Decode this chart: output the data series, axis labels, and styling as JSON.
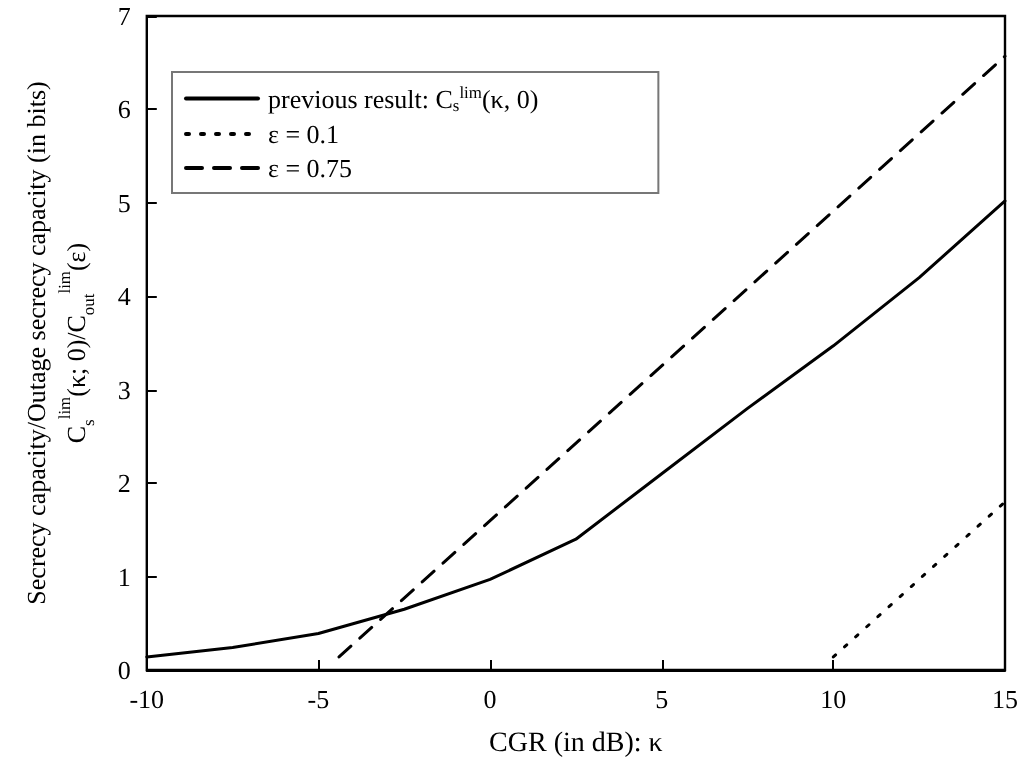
{
  "chart_data": {
    "type": "line",
    "xlabel": "CGR (in dB): κ",
    "ylabel": "Secrecy capacity/Outage secrecy capacity (in bits)\nC$_{s}$$^{lim}$(κ; 0)/C$_{out}$$^{lim}$(ε)",
    "xlim": [
      -10,
      15
    ],
    "xticks": [
      -10,
      -5,
      0,
      5,
      10,
      15
    ],
    "ylim": [
      0,
      7
    ],
    "yticks": [
      0,
      1,
      2,
      3,
      4,
      5,
      6,
      7
    ],
    "grid": false,
    "legend": "top left",
    "marker": "none",
    "series": [
      {
        "name": "previous result: C$_{s}$$^{lim}$(κ, 0)",
        "color": "#000000",
        "line_style": "solid",
        "x": [
          -10,
          -7.5,
          -5,
          -2.5,
          0,
          2.5,
          5,
          7.5,
          10,
          12.5,
          15
        ],
        "values": [
          0.14,
          0.24,
          0.39,
          0.65,
          0.97,
          1.4,
          2.1,
          2.8,
          3.47,
          4.2,
          5.02
        ]
      },
      {
        "name": "ε = 0.1",
        "color": "#000000",
        "line_style": "dotted",
        "x": [
          10,
          15
        ],
        "values": [
          0.14,
          1.8
        ]
      },
      {
        "name": "ε = 0.75",
        "color": "#000000",
        "line_style": "dashed",
        "x": [
          -4.4,
          15
        ],
        "values": [
          0.14,
          6.57
        ]
      }
    ]
  }
}
